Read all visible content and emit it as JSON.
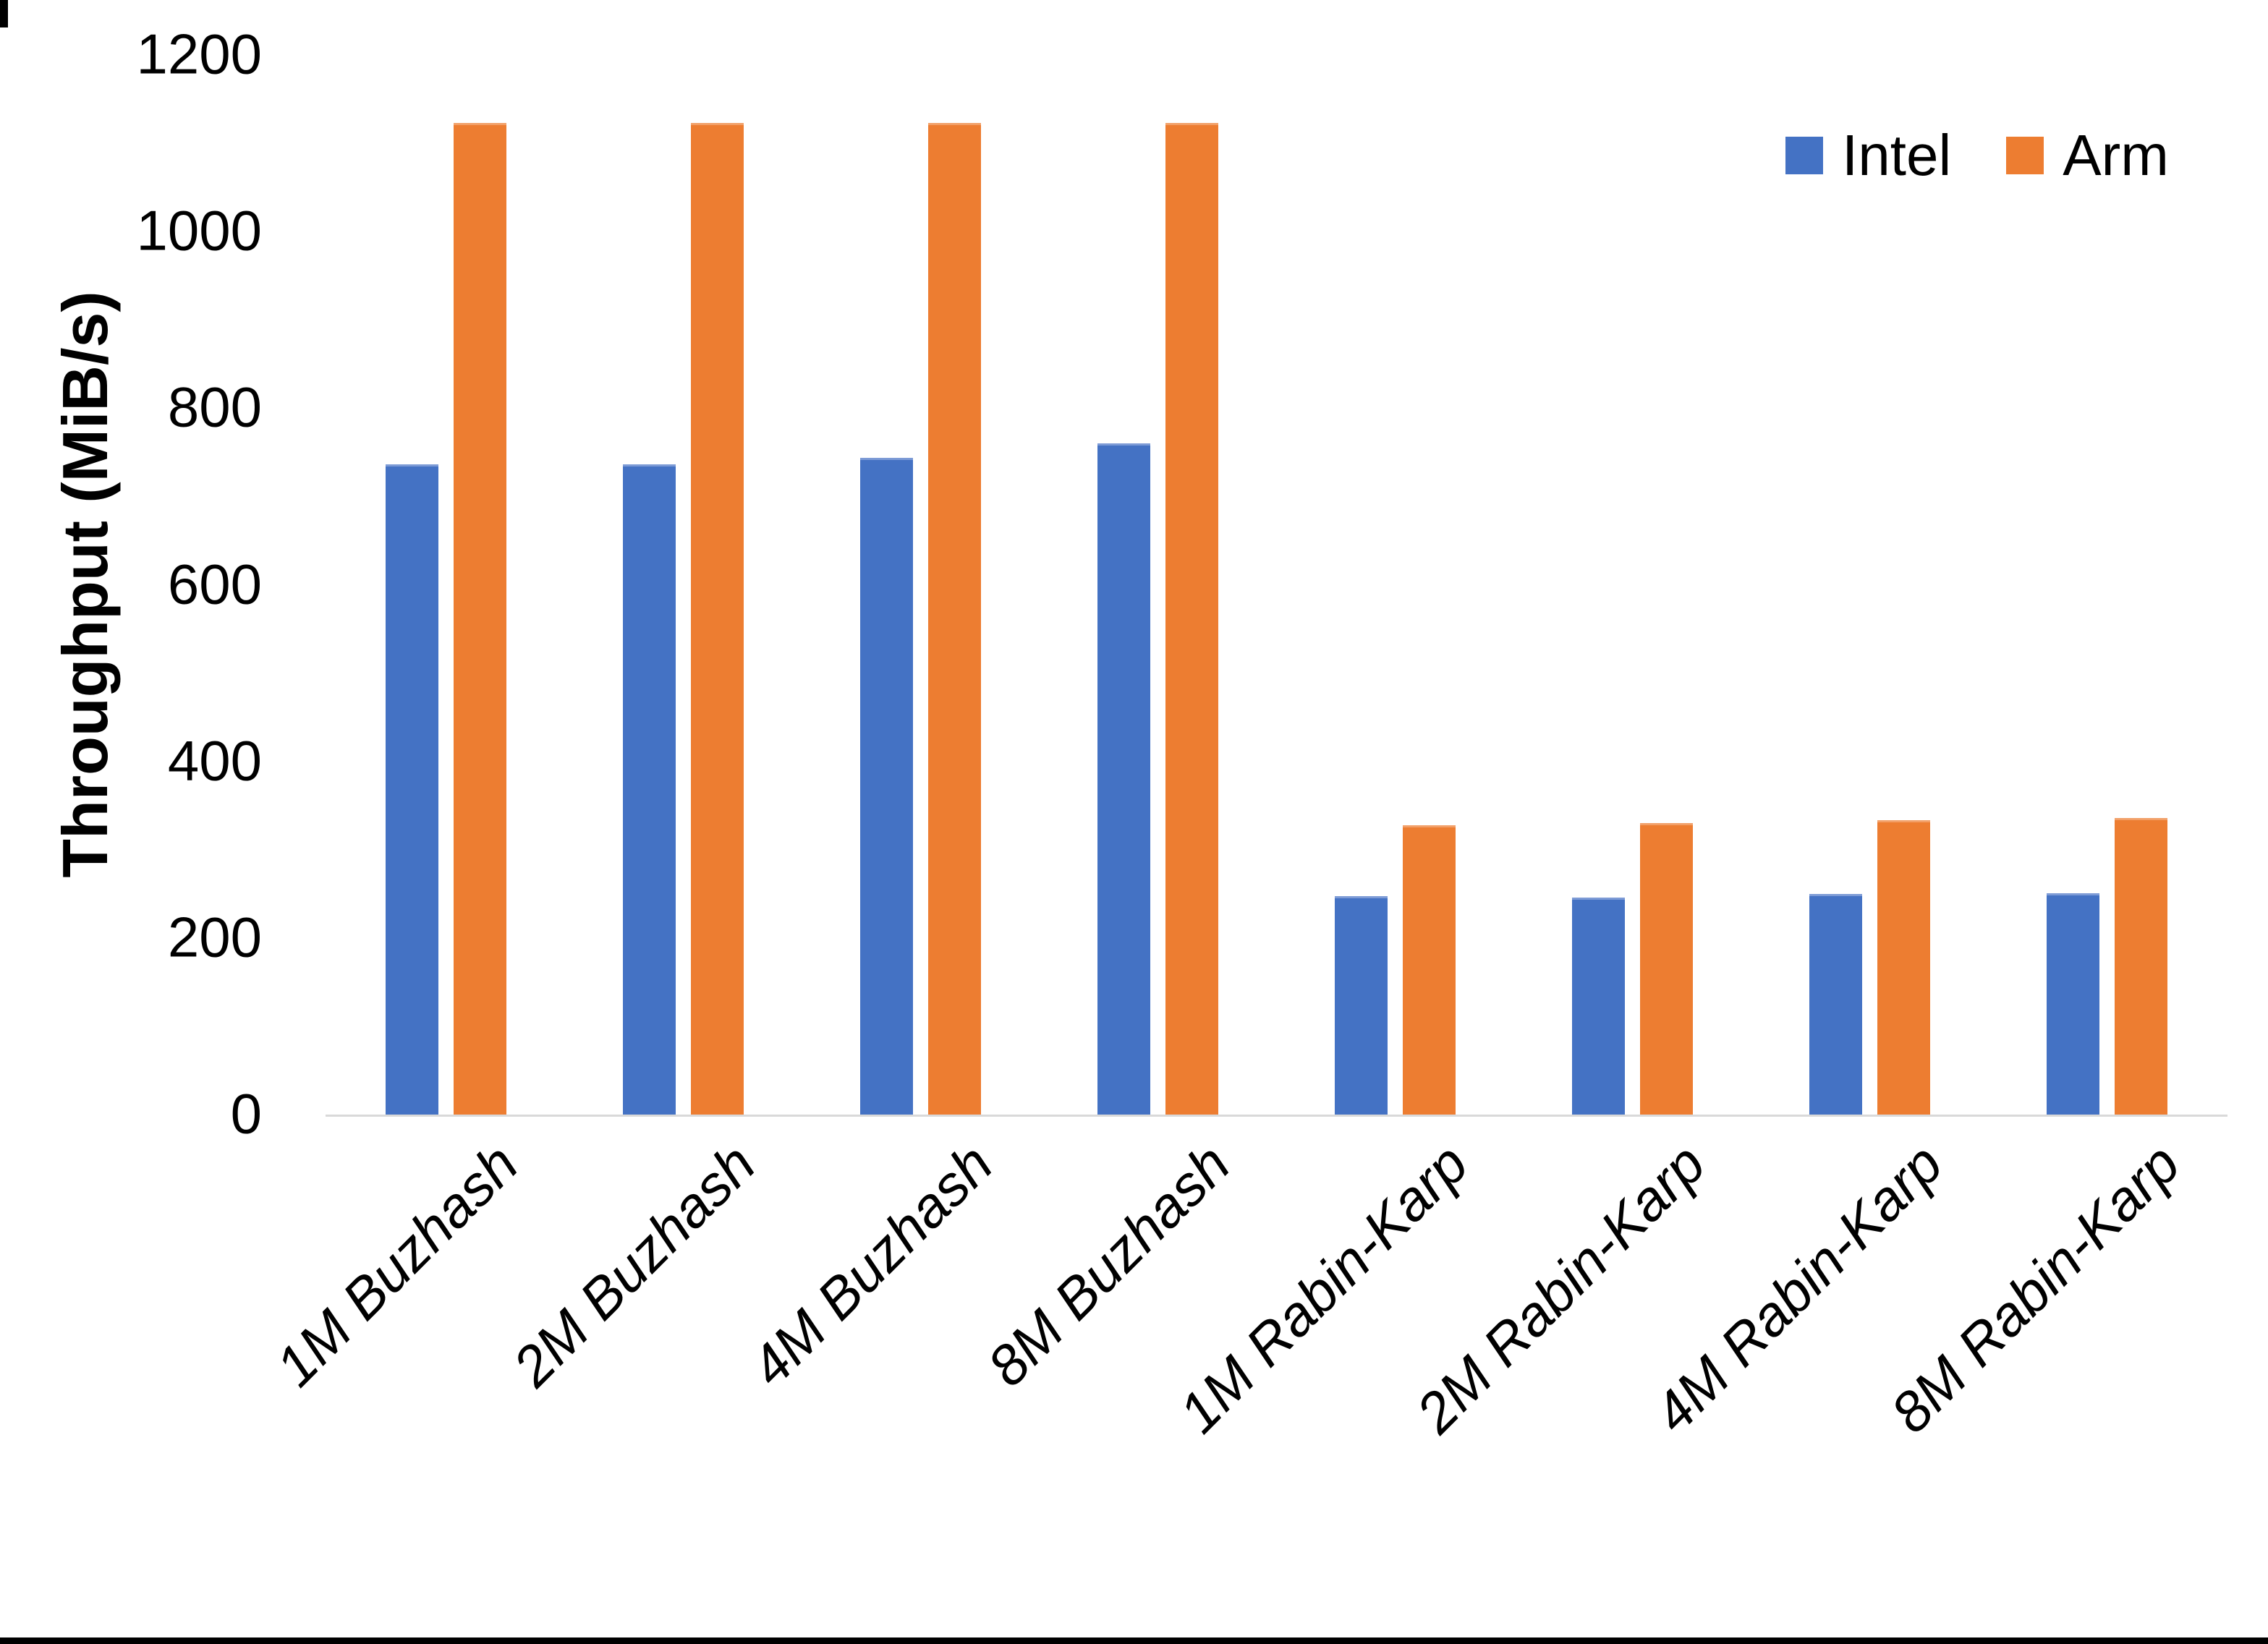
{
  "chart_data": {
    "type": "bar",
    "title": "",
    "xlabel": "",
    "ylabel": "Throughput (MiB/s)",
    "ylim": [
      0,
      1200
    ],
    "y_ticks": [
      0,
      200,
      400,
      600,
      800,
      1000,
      1200
    ],
    "grid": false,
    "legend_position": "top-right",
    "categories": [
      "1M Buzhash",
      "2M Buzhash",
      "4M Buzhash",
      "8M Buzhash",
      "1M Rabin-Karp",
      "2M Rabin-Karp",
      "4M Rabin-Karp",
      "8M Rabin-Karp"
    ],
    "series": [
      {
        "name": "Intel",
        "color": "#4472C4",
        "values": [
          736,
          736,
          744,
          760,
          247,
          246,
          250,
          251
        ]
      },
      {
        "name": "Arm",
        "color": "#ED7D31",
        "values": [
          1123,
          1123,
          1123,
          1123,
          328,
          330,
          333,
          336
        ]
      }
    ]
  },
  "colors": {
    "background": "#FFFFFF",
    "axis_line": "#D9D9D9",
    "text": "#000000",
    "bottom_border": "#000000"
  }
}
